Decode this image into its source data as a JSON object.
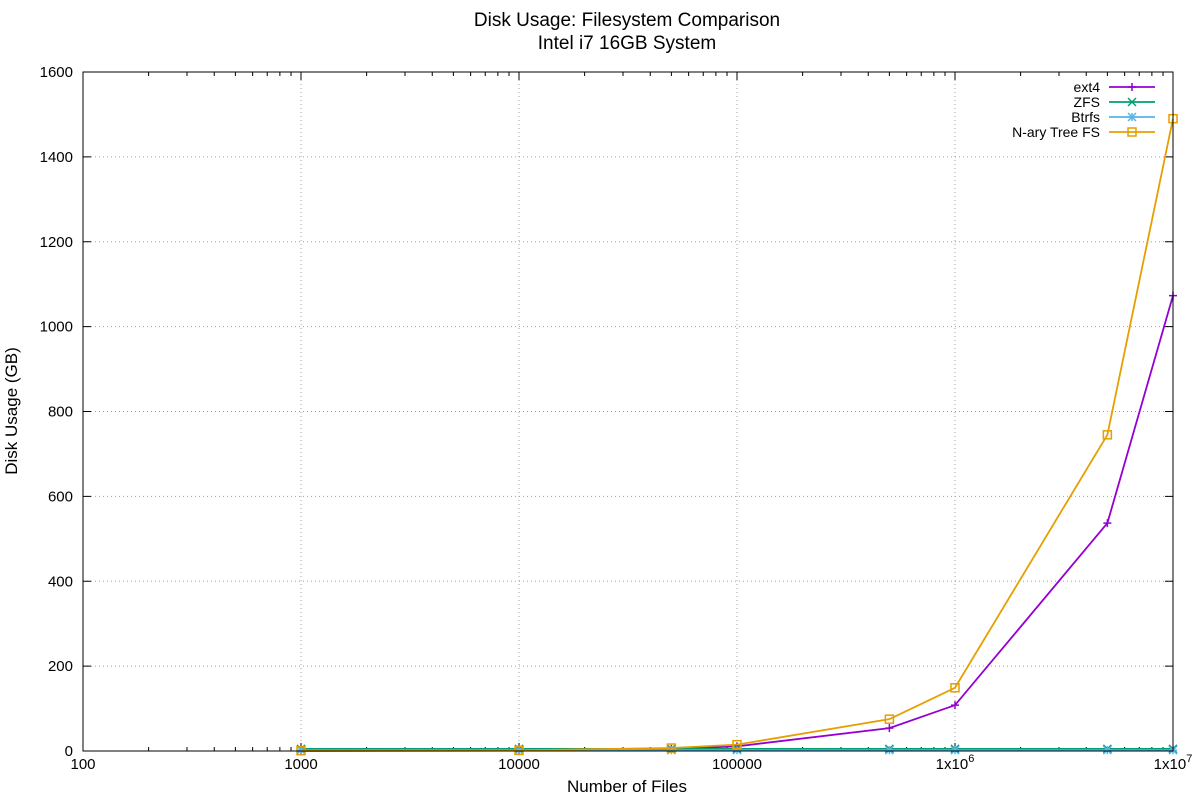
{
  "chart_data": {
    "type": "line",
    "title": "Disk Usage: Filesystem Comparison",
    "subtitle": "Intel i7 16GB System",
    "xlabel": "Number of Files",
    "ylabel": "Disk Usage (GB)",
    "xscale": "log",
    "xlim": [
      100,
      10000000
    ],
    "ylim": [
      0,
      1600
    ],
    "grid": true,
    "legend_position": "top-right",
    "x_ticks": [
      {
        "value": 100,
        "base": "100",
        "exp": ""
      },
      {
        "value": 1000,
        "base": "1000",
        "exp": ""
      },
      {
        "value": 10000,
        "base": "10000",
        "exp": ""
      },
      {
        "value": 100000,
        "base": "100000",
        "exp": ""
      },
      {
        "value": 1000000,
        "base": "1x10",
        "exp": "6"
      },
      {
        "value": 10000000,
        "base": "1x10",
        "exp": "7"
      }
    ],
    "y_ticks": [
      0,
      200,
      400,
      600,
      800,
      1000,
      1200,
      1400,
      1600
    ],
    "x": [
      1000,
      10000,
      50000,
      100000,
      500000,
      1000000,
      5000000,
      10000000
    ],
    "series": [
      {
        "name": "ext4",
        "color": "#9400d3",
        "marker": "plus",
        "values": [
          0.5,
          1,
          5,
          11,
          54,
          108,
          537,
          1073
        ]
      },
      {
        "name": "ZFS",
        "color": "#009e73",
        "marker": "x",
        "values": [
          5,
          5,
          5,
          5,
          5,
          5,
          5,
          5
        ]
      },
      {
        "name": "Btrfs",
        "color": "#56b4e9",
        "marker": "star",
        "values": [
          2,
          2,
          2,
          2,
          2,
          2,
          2,
          2
        ]
      },
      {
        "name": "N-ary Tree FS",
        "color": "#e69f00",
        "marker": "square",
        "values": [
          0.7,
          1.5,
          7,
          15,
          75,
          149,
          745,
          1490
        ]
      }
    ]
  }
}
